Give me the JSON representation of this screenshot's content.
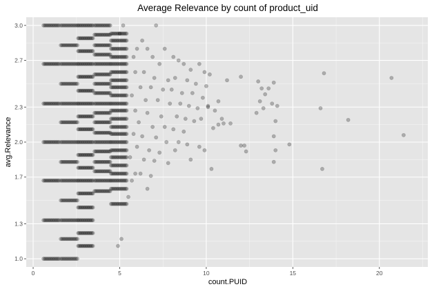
{
  "chart_data": {
    "type": "scatter",
    "title": "Average Relevance by count of product_uid",
    "xlabel": "count.PUID",
    "ylabel": "avg.Relevance",
    "xlim": [
      -0.4,
      22.8
    ],
    "ylim": [
      0.93,
      3.07
    ],
    "x_ticks": [
      0,
      5,
      10,
      15,
      20
    ],
    "y_ticks": [
      1.0,
      1.3,
      1.7,
      2.0,
      2.3,
      2.7,
      3.0
    ],
    "y_tick_labels": [
      "1.0",
      "1.3",
      "1.7",
      "2.0",
      "2.3",
      "2.7",
      "3.0"
    ],
    "grid": true,
    "legend": "none",
    "colors": {
      "panel_background": "#e5e5e5",
      "grid_major": "#ffffff",
      "point": "#000000",
      "point_opacity": 0.25
    },
    "point_clusters": {
      "count_1": {
        "x_range": [
          0.6,
          1.5
        ],
        "y_values": [
          1.0,
          1.33,
          1.67,
          2.0,
          2.33,
          2.67,
          3.0
        ]
      },
      "count_2": {
        "x_range": [
          1.6,
          2.55
        ],
        "y_values": [
          1.0,
          1.17,
          1.33,
          1.5,
          1.67,
          1.83,
          2.0,
          2.17,
          2.33,
          2.5,
          2.67,
          2.83,
          3.0
        ]
      },
      "count_3": {
        "x_range": [
          2.6,
          3.45
        ],
        "y_values": [
          1.11,
          1.22,
          1.33,
          1.44,
          1.56,
          1.67,
          1.78,
          1.89,
          2.0,
          2.11,
          2.22,
          2.33,
          2.44,
          2.56,
          2.67,
          2.78,
          2.89,
          3.0
        ]
      },
      "count_4": {
        "x_range": [
          3.55,
          4.45
        ],
        "y_values": [
          1.58,
          1.67,
          1.75,
          1.83,
          1.92,
          2.0,
          2.08,
          2.17,
          2.25,
          2.33,
          2.42,
          2.5,
          2.58,
          2.67,
          2.75,
          2.83,
          2.92,
          3.0
        ]
      },
      "count_5": {
        "x_range": [
          4.5,
          5.4
        ],
        "y_values": [
          1.47,
          1.6,
          1.67,
          1.73,
          1.8,
          1.87,
          1.93,
          2.0,
          2.07,
          2.13,
          2.2,
          2.27,
          2.33,
          2.4,
          2.47,
          2.53,
          2.6,
          2.67,
          2.73,
          2.8,
          2.87,
          2.93
        ]
      }
    },
    "points": [
      {
        "x": 5.2,
        "y": 3.0
      },
      {
        "x": 7.1,
        "y": 3.0
      },
      {
        "x": 5.0,
        "y": 2.93
      },
      {
        "x": 6.3,
        "y": 2.87
      },
      {
        "x": 5.1,
        "y": 1.17
      },
      {
        "x": 4.9,
        "y": 1.11
      },
      {
        "x": 6.0,
        "y": 2.8
      },
      {
        "x": 6.6,
        "y": 2.8
      },
      {
        "x": 7.6,
        "y": 2.8
      },
      {
        "x": 8.1,
        "y": 2.73
      },
      {
        "x": 8.4,
        "y": 2.7
      },
      {
        "x": 5.8,
        "y": 2.73
      },
      {
        "x": 6.9,
        "y": 2.73
      },
      {
        "x": 7.3,
        "y": 2.67
      },
      {
        "x": 8.7,
        "y": 2.67
      },
      {
        "x": 9.1,
        "y": 2.62
      },
      {
        "x": 9.6,
        "y": 2.67
      },
      {
        "x": 9.9,
        "y": 2.6
      },
      {
        "x": 10.2,
        "y": 2.58
      },
      {
        "x": 5.9,
        "y": 2.6
      },
      {
        "x": 6.4,
        "y": 2.6
      },
      {
        "x": 7.0,
        "y": 2.55
      },
      {
        "x": 7.8,
        "y": 2.53
      },
      {
        "x": 8.2,
        "y": 2.55
      },
      {
        "x": 8.9,
        "y": 2.53
      },
      {
        "x": 9.4,
        "y": 2.5
      },
      {
        "x": 10.0,
        "y": 2.48
      },
      {
        "x": 6.2,
        "y": 2.47
      },
      {
        "x": 6.8,
        "y": 2.47
      },
      {
        "x": 7.5,
        "y": 2.45
      },
      {
        "x": 8.0,
        "y": 2.45
      },
      {
        "x": 8.6,
        "y": 2.42
      },
      {
        "x": 9.2,
        "y": 2.42
      },
      {
        "x": 9.8,
        "y": 2.38
      },
      {
        "x": 5.7,
        "y": 2.4
      },
      {
        "x": 6.5,
        "y": 2.36
      },
      {
        "x": 7.2,
        "y": 2.36
      },
      {
        "x": 7.9,
        "y": 2.33
      },
      {
        "x": 8.5,
        "y": 2.33
      },
      {
        "x": 9.0,
        "y": 2.31
      },
      {
        "x": 9.5,
        "y": 2.29
      },
      {
        "x": 10.1,
        "y": 2.31
      },
      {
        "x": 10.5,
        "y": 2.27
      },
      {
        "x": 5.9,
        "y": 2.27
      },
      {
        "x": 6.6,
        "y": 2.25
      },
      {
        "x": 7.4,
        "y": 2.22
      },
      {
        "x": 8.3,
        "y": 2.22
      },
      {
        "x": 8.8,
        "y": 2.2
      },
      {
        "x": 9.3,
        "y": 2.18
      },
      {
        "x": 9.7,
        "y": 2.2
      },
      {
        "x": 6.1,
        "y": 2.17
      },
      {
        "x": 6.9,
        "y": 2.13
      },
      {
        "x": 7.6,
        "y": 2.13
      },
      {
        "x": 8.1,
        "y": 2.11
      },
      {
        "x": 8.7,
        "y": 2.09
      },
      {
        "x": 5.8,
        "y": 2.07
      },
      {
        "x": 6.3,
        "y": 2.05
      },
      {
        "x": 7.1,
        "y": 2.04
      },
      {
        "x": 7.7,
        "y": 2.0
      },
      {
        "x": 8.4,
        "y": 2.0
      },
      {
        "x": 8.9,
        "y": 1.98
      },
      {
        "x": 9.6,
        "y": 1.96
      },
      {
        "x": 6.0,
        "y": 1.96
      },
      {
        "x": 6.7,
        "y": 1.93
      },
      {
        "x": 7.3,
        "y": 1.91
      },
      {
        "x": 8.2,
        "y": 1.93
      },
      {
        "x": 9.9,
        "y": 1.93
      },
      {
        "x": 5.6,
        "y": 1.87
      },
      {
        "x": 6.4,
        "y": 1.85
      },
      {
        "x": 7.0,
        "y": 1.84
      },
      {
        "x": 7.8,
        "y": 1.82
      },
      {
        "x": 9.1,
        "y": 1.85
      },
      {
        "x": 5.9,
        "y": 1.73
      },
      {
        "x": 6.2,
        "y": 1.73
      },
      {
        "x": 6.8,
        "y": 1.71
      },
      {
        "x": 5.7,
        "y": 1.67
      },
      {
        "x": 6.6,
        "y": 1.6
      },
      {
        "x": 5.5,
        "y": 1.53
      },
      {
        "x": 11.2,
        "y": 2.53
      },
      {
        "x": 12.0,
        "y": 2.56
      },
      {
        "x": 10.7,
        "y": 2.35
      },
      {
        "x": 10.9,
        "y": 2.2
      },
      {
        "x": 10.4,
        "y": 2.12
      },
      {
        "x": 10.1,
        "y": 2.3
      },
      {
        "x": 11.4,
        "y": 2.16
      },
      {
        "x": 11.0,
        "y": 2.16
      },
      {
        "x": 10.7,
        "y": 2.15
      },
      {
        "x": 12.0,
        "y": 1.97
      },
      {
        "x": 12.2,
        "y": 1.97
      },
      {
        "x": 12.3,
        "y": 1.92
      },
      {
        "x": 10.3,
        "y": 1.77
      },
      {
        "x": 13.0,
        "y": 2.52
      },
      {
        "x": 13.2,
        "y": 2.46
      },
      {
        "x": 13.4,
        "y": 2.41
      },
      {
        "x": 13.1,
        "y": 2.35
      },
      {
        "x": 13.6,
        "y": 2.46
      },
      {
        "x": 13.9,
        "y": 2.51
      },
      {
        "x": 13.3,
        "y": 2.29
      },
      {
        "x": 12.9,
        "y": 2.25
      },
      {
        "x": 13.8,
        "y": 2.33
      },
      {
        "x": 14.1,
        "y": 2.31
      },
      {
        "x": 14.0,
        "y": 2.18
      },
      {
        "x": 13.9,
        "y": 2.05
      },
      {
        "x": 14.0,
        "y": 1.93
      },
      {
        "x": 14.8,
        "y": 1.98
      },
      {
        "x": 13.9,
        "y": 1.83
      },
      {
        "x": 16.8,
        "y": 2.59
      },
      {
        "x": 16.6,
        "y": 2.29
      },
      {
        "x": 18.2,
        "y": 2.19
      },
      {
        "x": 16.7,
        "y": 1.77
      },
      {
        "x": 20.7,
        "y": 2.55
      },
      {
        "x": 21.4,
        "y": 2.06
      }
    ]
  }
}
